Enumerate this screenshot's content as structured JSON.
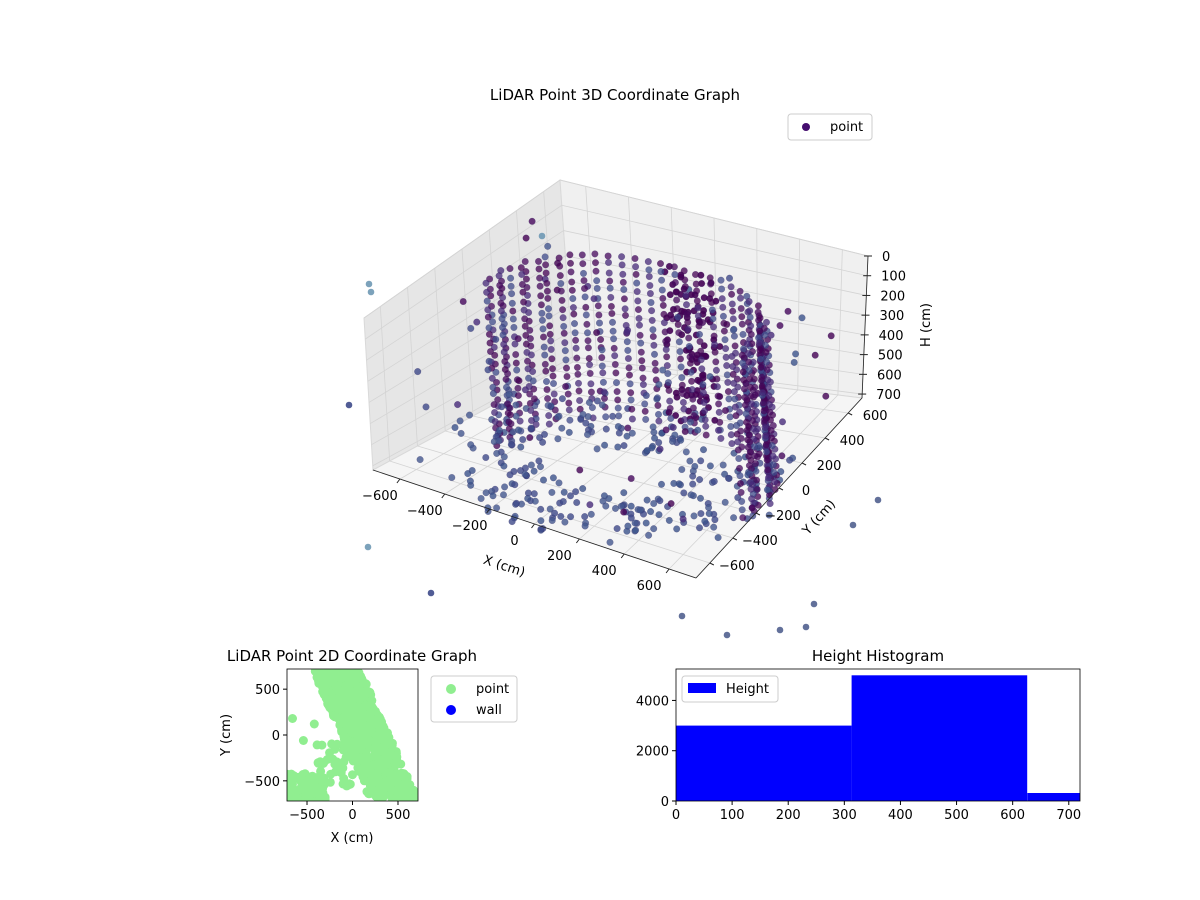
{
  "chart_data": [
    {
      "type": "scatter",
      "projection": "3d",
      "title": "LiDAR Point 3D Coordinate Graph",
      "xlabel": "X (cm)",
      "ylabel": "Y (cm)",
      "zlabel": "H (cm)",
      "xlim": [
        -720,
        720
      ],
      "ylim": [
        -720,
        720
      ],
      "zlim": [
        0,
        720
      ],
      "zaxis_inverted": true,
      "x_ticks": [
        "−600",
        "−400",
        "−200",
        "0",
        "200",
        "400",
        "600"
      ],
      "y_ticks": [
        "−600",
        "−400",
        "−200",
        "0",
        "200",
        "400",
        "600"
      ],
      "z_ticks": [
        "0",
        "100",
        "200",
        "300",
        "400",
        "500",
        "600",
        "700"
      ],
      "legend": {
        "position": "top-right",
        "entries": [
          {
            "label": "point",
            "color": "#440d6e"
          }
        ]
      },
      "colors": {
        "low": "#440154",
        "mid": "#3b528b",
        "high": "#6e98b4"
      },
      "series": [
        {
          "name": "point",
          "note": "curved wall of points at radius about 600 cm plus scattered outliers"
        }
      ]
    },
    {
      "type": "scatter",
      "title": "LiDAR Point 2D Coordinate Graph",
      "xlabel": "X (cm)",
      "ylabel": "Y (cm)",
      "xlim": [
        -720,
        720
      ],
      "ylim": [
        -720,
        720
      ],
      "x_ticks": [
        "−500",
        "0",
        "500"
      ],
      "y_ticks": [
        "−500",
        "0",
        "500"
      ],
      "legend": {
        "position": "outside-right",
        "entries": [
          {
            "label": "point",
            "color": "#90ee90"
          },
          {
            "label": "wall",
            "color": "#0000ff"
          }
        ]
      }
    },
    {
      "type": "bar",
      "title": "Height Histogram",
      "bins": [
        [
          0,
          313
        ],
        [
          313,
          626
        ],
        [
          626,
          720
        ]
      ],
      "values": [
        3000,
        5000,
        320
      ],
      "xlim": [
        0,
        720
      ],
      "ylim": [
        0,
        5250
      ],
      "x_ticks": [
        "0",
        "100",
        "200",
        "300",
        "400",
        "500",
        "600",
        "700"
      ],
      "y_ticks": [
        "0",
        "2000",
        "4000"
      ],
      "color": "#0000ff",
      "legend": {
        "position": "top-left",
        "entries": [
          {
            "label": "Height",
            "color": "#0000ff"
          }
        ]
      }
    }
  ]
}
